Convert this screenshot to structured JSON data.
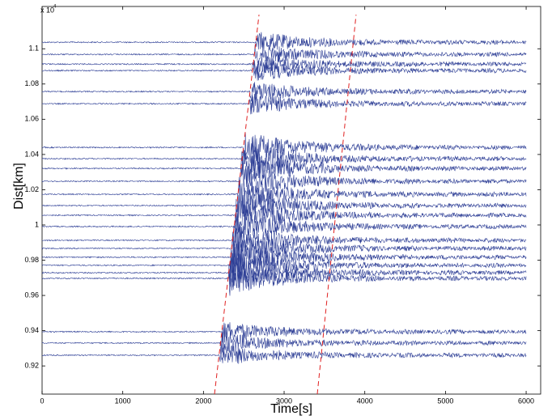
{
  "chart_data": {
    "type": "record-section",
    "x_label": "Time[s]",
    "y_label": "Dist[km]",
    "y_multiplier": "x 10",
    "y_multiplier_exponent": "4",
    "xlim": [
      0,
      6180
    ],
    "xticks": [
      0,
      1000,
      2000,
      3000,
      4000,
      5000,
      6000
    ],
    "ylim": [
      9040,
      11240
    ],
    "yticks": [
      {
        "value": 9200,
        "label": "0.92"
      },
      {
        "value": 9400,
        "label": "0.94"
      },
      {
        "value": 9600,
        "label": "0.96"
      },
      {
        "value": 9800,
        "label": "0.98"
      },
      {
        "value": 10000,
        "label": "1"
      },
      {
        "value": 10200,
        "label": "1.02"
      },
      {
        "value": 10400,
        "label": "1.04"
      },
      {
        "value": 10600,
        "label": "1.06"
      },
      {
        "value": 10800,
        "label": "1.08"
      },
      {
        "value": 11000,
        "label": "1.1"
      }
    ],
    "trace_color": "#2e3f96",
    "trace_distances": [
      11037,
      10968,
      10913,
      10876,
      10757,
      10688,
      10440,
      10376,
      10321,
      10248,
      10174,
      10110,
      10055,
      9991,
      9913,
      9867,
      9817,
      9771,
      9729,
      9697,
      9394,
      9330,
      9261
    ],
    "lines": [
      {
        "color": "#e02020",
        "x": [
          2137,
          2689
        ],
        "y": [
          9040,
          11193
        ]
      },
      {
        "color": "#e02020",
        "x": [
          3411,
          3892
        ],
        "y": [
          9040,
          11193
        ]
      }
    ]
  }
}
